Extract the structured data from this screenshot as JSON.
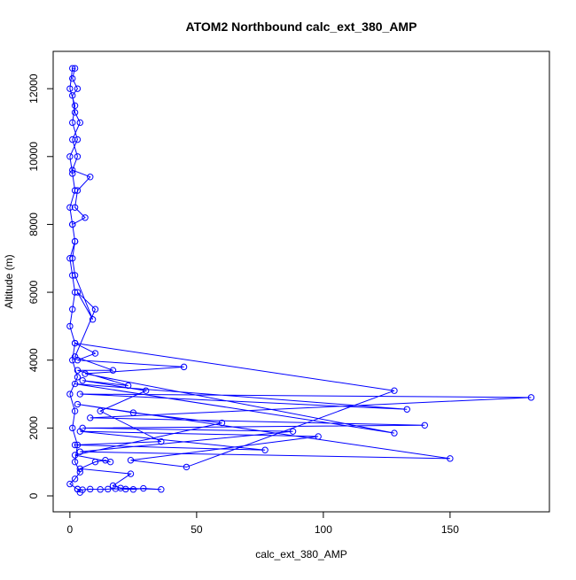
{
  "chart_data": {
    "type": "line",
    "title": "ATOM2 Northbound calc_ext_380_AMP",
    "x_label": "calc_ext_380_AMP",
    "y_label": "Altitude (m)",
    "x": [
      3,
      5,
      8,
      12,
      15,
      18,
      22,
      25,
      29,
      36,
      20,
      17,
      24,
      4,
      10,
      14,
      16,
      2,
      60,
      25,
      3,
      150,
      4,
      88,
      5,
      140,
      8,
      182,
      4,
      133,
      2,
      128,
      6,
      45,
      3,
      10,
      2,
      128,
      46,
      24,
      98,
      4,
      77,
      2,
      36,
      12,
      30,
      5,
      23,
      3,
      17,
      2,
      10,
      3,
      9,
      2,
      1,
      2,
      1,
      6,
      2,
      3,
      8,
      1,
      3,
      1,
      4,
      2,
      1,
      3,
      1,
      2,
      1,
      0,
      2,
      1,
      3,
      0,
      1,
      2,
      0,
      1,
      2,
      0,
      1,
      2,
      1,
      0,
      2,
      1,
      3,
      0,
      2,
      1,
      3,
      2,
      4,
      2,
      0,
      3,
      4
    ],
    "series": [
      {
        "color": "#0000ff",
        "values": [
          200,
          180,
          200,
          190,
          200,
          210,
          200,
          190,
          220,
          190,
          230,
          300,
          650,
          800,
          1000,
          1050,
          1000,
          1200,
          2150,
          2450,
          2700,
          1100,
          1300,
          1900,
          2000,
          2080,
          2300,
          2900,
          3000,
          2550,
          3300,
          1850,
          3600,
          3800,
          4000,
          4200,
          4500,
          3100,
          850,
          1050,
          1750,
          1900,
          1350,
          1500,
          1600,
          2500,
          3100,
          3400,
          3250,
          3700,
          3700,
          4100,
          5500,
          6000,
          5200,
          6500,
          7000,
          7500,
          8000,
          8200,
          8500,
          9000,
          9400,
          9600,
          10000,
          10500,
          11000,
          11300,
          11800,
          12000,
          12300,
          12600,
          12600,
          12000,
          11500,
          11000,
          10500,
          10000,
          9500,
          9000,
          8500,
          8000,
          7500,
          7000,
          6500,
          6000,
          5500,
          5000,
          4500,
          4000,
          3500,
          3000,
          2500,
          2000,
          1500,
          1000,
          700,
          500,
          350,
          200,
          100
        ]
      }
    ],
    "xlim": [
      -6.6,
      189.2
    ],
    "ylim": [
      -470,
      13100
    ],
    "xticks": [
      0,
      50,
      100,
      150
    ],
    "yticks": [
      0,
      2000,
      4000,
      6000,
      8000,
      10000,
      12000
    ]
  }
}
